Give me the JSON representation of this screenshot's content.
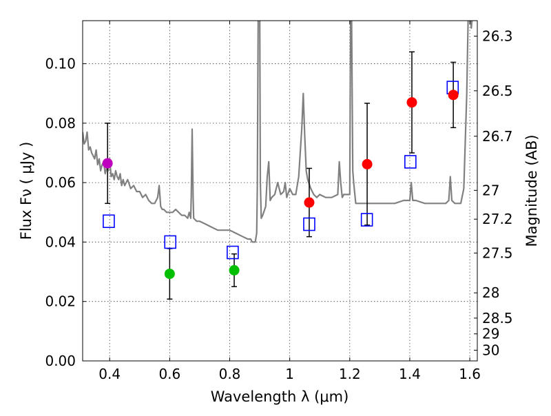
{
  "chart_data": {
    "type": "scatter",
    "xlabel": "Wavelength  λ (μm)",
    "ylabel": "Flux  Fν  ( μJy )",
    "y2label": "Magnitude (AB)",
    "xlim": [
      0.31,
      1.625
    ],
    "ylim": [
      0.0,
      0.1145
    ],
    "grid": true,
    "x_ticks": [
      0.4,
      0.6,
      0.8,
      1.0,
      1.2,
      1.4,
      1.6
    ],
    "x_tick_labels": [
      "0.4",
      "0.6",
      "0.8",
      "1",
      "1.2",
      "1.4",
      "1.6"
    ],
    "y_ticks": [
      0.0,
      0.02,
      0.04,
      0.06,
      0.08,
      0.1
    ],
    "y_tick_labels": [
      "0.00",
      "0.02",
      "0.04",
      "0.06",
      "0.08",
      "0.10"
    ],
    "y2_ticks": [
      {
        "label": "26.3",
        "flux": 0.1093
      },
      {
        "label": "26.5",
        "flux": 0.0909
      },
      {
        "label": "26.7",
        "flux": 0.0756
      },
      {
        "label": "27",
        "flux": 0.0574
      },
      {
        "label": "27.2",
        "flux": 0.0477
      },
      {
        "label": "27.5",
        "flux": 0.0363
      },
      {
        "label": "28",
        "flux": 0.0229
      },
      {
        "label": "28.5",
        "flux": 0.0144
      },
      {
        "label": "29",
        "flux": 0.0091
      },
      {
        "label": "30",
        "flux": 0.0036
      }
    ],
    "series": [
      {
        "kind": "model-spectrum",
        "color": "#808080",
        "x": [
          0.31,
          0.315,
          0.32,
          0.325,
          0.33,
          0.335,
          0.34,
          0.345,
          0.35,
          0.355,
          0.36,
          0.365,
          0.37,
          0.375,
          0.38,
          0.385,
          0.39,
          0.395,
          0.4,
          0.405,
          0.41,
          0.415,
          0.42,
          0.425,
          0.43,
          0.435,
          0.44,
          0.445,
          0.45,
          0.46,
          0.47,
          0.48,
          0.49,
          0.5,
          0.51,
          0.52,
          0.53,
          0.54,
          0.55,
          0.56,
          0.565,
          0.57,
          0.575,
          0.58,
          0.59,
          0.6,
          0.61,
          0.62,
          0.63,
          0.64,
          0.65,
          0.66,
          0.665,
          0.67,
          0.672,
          0.675,
          0.678,
          0.68,
          0.69,
          0.7,
          0.72,
          0.74,
          0.76,
          0.78,
          0.8,
          0.82,
          0.84,
          0.86,
          0.87,
          0.875,
          0.88,
          0.885,
          0.89,
          0.892,
          0.895,
          0.9,
          0.902,
          0.905,
          0.91,
          0.92,
          0.925,
          0.93,
          0.935,
          0.94,
          0.95,
          0.96,
          0.97,
          0.98,
          0.985,
          0.99,
          1.0,
          1.01,
          1.02,
          1.03,
          1.04,
          1.045,
          1.05,
          1.055,
          1.06,
          1.07,
          1.08,
          1.09,
          1.1,
          1.12,
          1.14,
          1.16,
          1.165,
          1.17,
          1.175,
          1.18,
          1.19,
          1.2,
          1.203,
          1.206,
          1.21,
          1.213,
          1.22,
          1.25,
          1.3,
          1.35,
          1.38,
          1.4,
          1.405,
          1.41,
          1.42,
          1.45,
          1.48,
          1.5,
          1.52,
          1.53,
          1.535,
          1.54,
          1.55,
          1.56,
          1.565,
          1.57,
          1.58,
          1.59,
          1.595,
          1.6,
          1.605,
          1.61,
          1.615,
          1.62,
          1.625
        ],
        "y": [
          0.077,
          0.073,
          0.074,
          0.077,
          0.071,
          0.072,
          0.07,
          0.069,
          0.068,
          0.071,
          0.066,
          0.068,
          0.064,
          0.066,
          0.067,
          0.063,
          0.065,
          0.064,
          0.068,
          0.062,
          0.063,
          0.061,
          0.064,
          0.062,
          0.061,
          0.063,
          0.059,
          0.061,
          0.059,
          0.061,
          0.058,
          0.059,
          0.057,
          0.057,
          0.055,
          0.056,
          0.054,
          0.053,
          0.053,
          0.055,
          0.059,
          0.052,
          0.051,
          0.051,
          0.05,
          0.05,
          0.05,
          0.051,
          0.05,
          0.049,
          0.049,
          0.048,
          0.05,
          0.048,
          0.0555,
          0.078,
          0.055,
          0.048,
          0.047,
          0.047,
          0.046,
          0.045,
          0.044,
          0.044,
          0.044,
          0.043,
          0.042,
          0.041,
          0.041,
          0.04,
          0.04,
          0.04,
          0.043,
          0.058,
          0.118,
          0.118,
          0.06,
          0.048,
          0.049,
          0.052,
          0.062,
          0.067,
          0.054,
          0.055,
          0.056,
          0.06,
          0.056,
          0.057,
          0.06,
          0.055,
          0.058,
          0.056,
          0.056,
          0.062,
          0.078,
          0.09,
          0.076,
          0.064,
          0.061,
          0.058,
          0.056,
          0.055,
          0.056,
          0.055,
          0.055,
          0.056,
          0.067,
          0.06,
          0.055,
          0.056,
          0.056,
          0.056,
          0.118,
          0.118,
          0.064,
          0.06,
          0.053,
          0.053,
          0.053,
          0.053,
          0.054,
          0.054,
          0.06,
          0.054,
          0.054,
          0.053,
          0.053,
          0.053,
          0.053,
          0.054,
          0.062,
          0.054,
          0.053,
          0.053,
          0.053,
          0.053,
          0.058,
          0.09,
          0.118,
          0.118,
          0.112,
          0.118,
          0.118,
          0.118,
          0.118
        ]
      },
      {
        "kind": "measured",
        "points": [
          {
            "x": 0.393,
            "y": 0.0665,
            "err_lo": 0.0135,
            "err_hi": 0.0135,
            "color": "#bf00bf"
          },
          {
            "x": 0.6,
            "y": 0.0293,
            "err_lo": 0.0085,
            "err_hi": 0.0085,
            "color": "#00bf00"
          },
          {
            "x": 0.815,
            "y": 0.0305,
            "err_lo": 0.0055,
            "err_hi": 0.0055,
            "color": "#00bf00"
          },
          {
            "x": 1.065,
            "y": 0.0533,
            "err_lo": 0.0115,
            "err_hi": 0.0115,
            "color": "#ff0000"
          },
          {
            "x": 1.258,
            "y": 0.0662,
            "err_lo": 0.0205,
            "err_hi": 0.0205,
            "color": "#ff0000"
          },
          {
            "x": 1.407,
            "y": 0.087,
            "err_lo": 0.017,
            "err_hi": 0.017,
            "color": "#ff0000"
          },
          {
            "x": 1.545,
            "y": 0.0895,
            "err_lo": 0.011,
            "err_hi": 0.011,
            "color": "#ff0000"
          }
        ]
      },
      {
        "kind": "model-photometry",
        "color": "#0000ff",
        "points": [
          {
            "x": 0.397,
            "y": 0.047
          },
          {
            "x": 0.602,
            "y": 0.04
          },
          {
            "x": 0.81,
            "y": 0.0365
          },
          {
            "x": 1.065,
            "y": 0.046
          },
          {
            "x": 1.257,
            "y": 0.0475
          },
          {
            "x": 1.402,
            "y": 0.067
          },
          {
            "x": 1.543,
            "y": 0.092
          }
        ]
      }
    ]
  }
}
